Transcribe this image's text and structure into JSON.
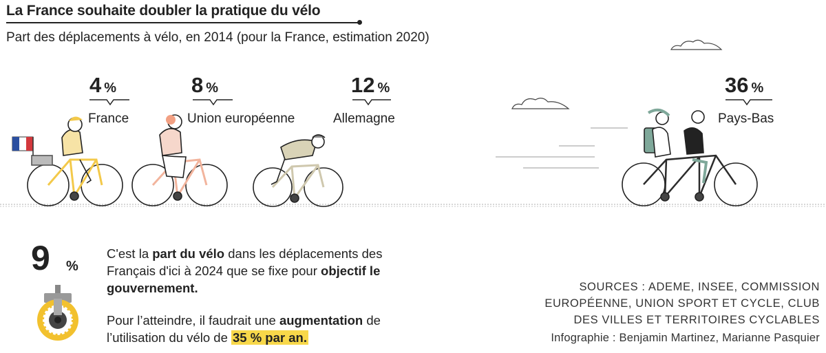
{
  "header": {
    "title": "La France souhaite doubler la pratique du vélo",
    "subtitle": "Part des déplacements à vélo, en 2014 (pour la France, estimation 2020)"
  },
  "chart_data": {
    "type": "bar",
    "title": "La France souhaite doubler la pratique du vélo",
    "subtitle": "Part des déplacements à vélo, en 2014 (pour la France, estimation 2020)",
    "categories": [
      "France",
      "Union européenne",
      "Allemagne",
      "Pays-Bas"
    ],
    "values": [
      4,
      8,
      12,
      36
    ],
    "unit": "%",
    "value_labels": [
      "4",
      "8",
      "12",
      "36"
    ]
  },
  "goal": {
    "value": "9",
    "unit": "%",
    "line1_a": "C'est la ",
    "line1_b": "part du vélo",
    "line1_c": " dans les déplacements des Français d'ici à 2024 que se fixe pour ",
    "line1_d": "objectif le gouvernement.",
    "line2_a": "Pour l’atteindre, il faudrait une ",
    "line2_b": "augmentation",
    "line2_c": " de l’utilisation du vélo de ",
    "line2_d": "35 % par an."
  },
  "sources": {
    "line1": "SOURCES : ADEME, INSEE, COMMISSION",
    "line2": "EUROPÉENNE, UNION SPORT ET CYCLE, CLUB",
    "line3": "DES VILLES ET TERRITOIRES CYCLABLES",
    "credit": "Infographie : Benjamin Martinez, Marianne Pasquier"
  },
  "colors": {
    "france": "#f3c94a",
    "eu": "#f2b49d",
    "germany": "#cfc8ae",
    "netherlands": "#2c2c2c",
    "highlight": "#f8d84a",
    "gear": "#f2c12e"
  }
}
